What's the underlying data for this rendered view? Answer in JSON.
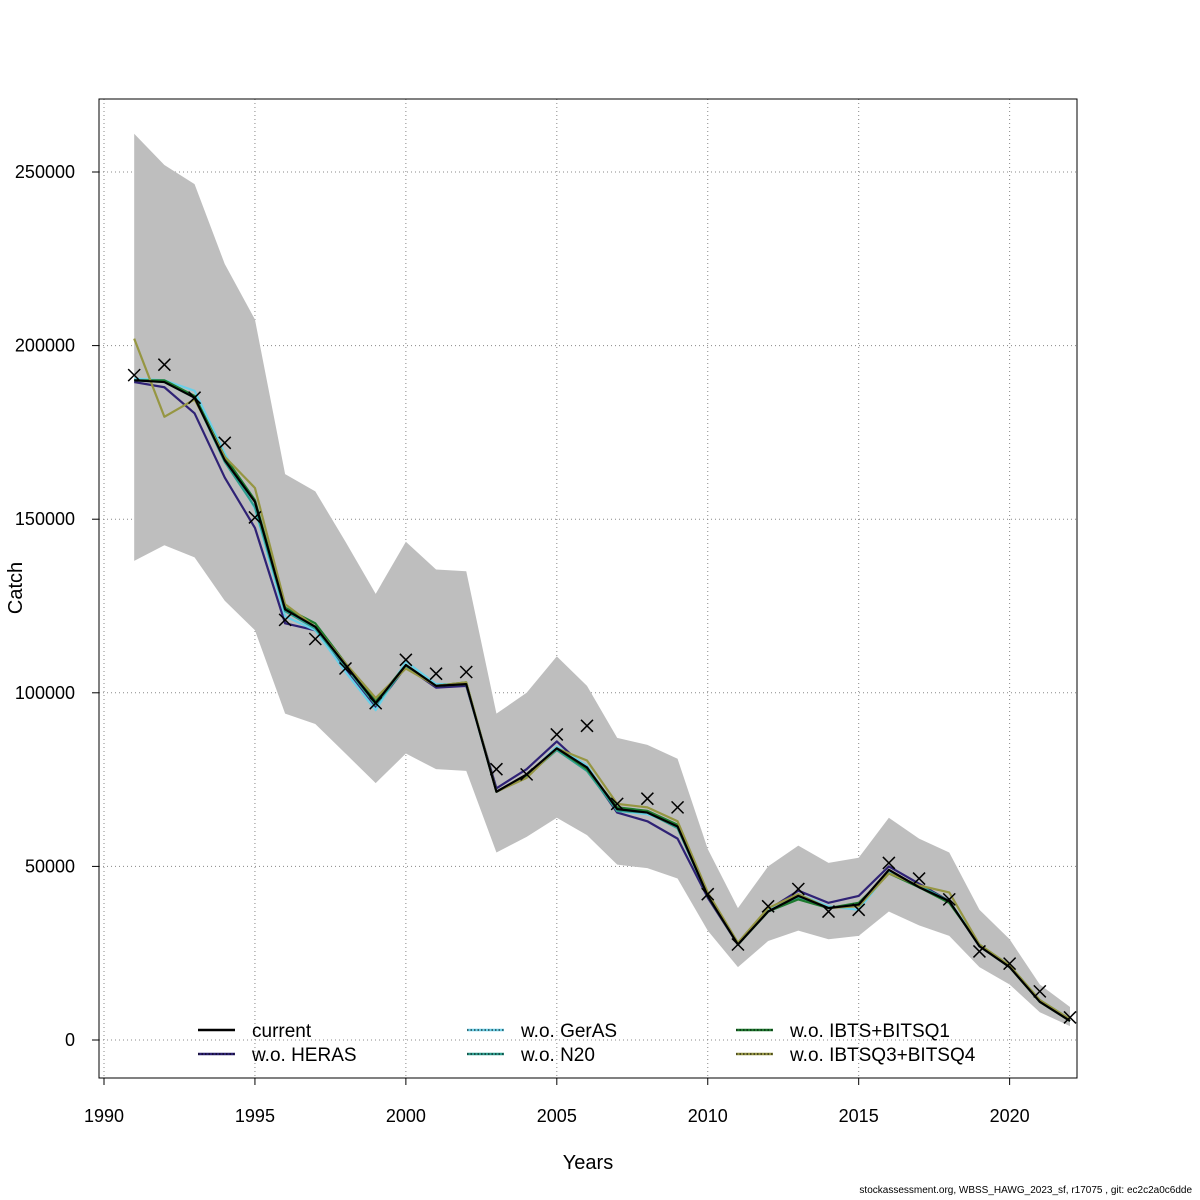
{
  "chart_data": {
    "type": "line",
    "xlabel": "Years",
    "ylabel": "Catch",
    "xlim": [
      1990,
      2023
    ],
    "ylim": [
      0,
      270000
    ],
    "x_ticks": [
      1990,
      1995,
      2000,
      2005,
      2010,
      2015,
      2020
    ],
    "y_ticks": [
      0,
      50000,
      100000,
      150000,
      200000,
      250000
    ],
    "grid": true,
    "legend_position": "bottom",
    "x": [
      1991,
      1992,
      1993,
      1994,
      1995,
      1996,
      1997,
      1998,
      1999,
      2000,
      2001,
      2002,
      2003,
      2004,
      2005,
      2006,
      2007,
      2008,
      2009,
      2010,
      2011,
      2012,
      2013,
      2014,
      2015,
      2016,
      2017,
      2018,
      2019,
      2020,
      2021,
      2022
    ],
    "confidence_band": {
      "color": "#bebebe",
      "lower": [
        138000,
        142500,
        139000,
        126500,
        118000,
        94000,
        91000,
        82500,
        74000,
        82500,
        78000,
        77500,
        54000,
        58500,
        64000,
        59000,
        50500,
        49500,
        46500,
        31500,
        21000,
        28500,
        31500,
        29000,
        30000,
        37000,
        33000,
        30000,
        21000,
        16000,
        8000,
        4000
      ],
      "upper": [
        261000,
        252000,
        246500,
        223500,
        207500,
        163000,
        158000,
        143500,
        128500,
        143500,
        135500,
        135000,
        94000,
        100000,
        110500,
        102000,
        87000,
        85000,
        81000,
        55000,
        38000,
        50000,
        56000,
        51000,
        52500,
        64000,
        58000,
        54000,
        37500,
        29000,
        16000,
        9500
      ]
    },
    "observed": {
      "marker": "x",
      "values": [
        191500,
        194500,
        185000,
        172000,
        150500,
        121000,
        115500,
        107000,
        97000,
        109500,
        105500,
        106000,
        78000,
        76500,
        88000,
        90500,
        68000,
        69500,
        67000,
        42000,
        27500,
        38500,
        43500,
        37000,
        37500,
        51000,
        46500,
        40500,
        25500,
        22000,
        14000,
        6500
      ]
    },
    "series": [
      {
        "name": "current",
        "color": "#000000",
        "dotted": false,
        "values": [
          190000,
          189500,
          185000,
          167000,
          155000,
          124000,
          119000,
          108000,
          97000,
          108000,
          102000,
          102500,
          71500,
          76500,
          84000,
          78500,
          66500,
          65500,
          61500,
          41500,
          27500,
          37000,
          41500,
          38000,
          39000,
          49000,
          44000,
          40000,
          27000,
          21000,
          11000,
          5500
        ]
      },
      {
        "name": "w.o. HERAS",
        "color": "#2f2275",
        "dotted": true,
        "values": [
          189500,
          188000,
          180500,
          162000,
          147500,
          120000,
          118000,
          107000,
          96000,
          107500,
          101500,
          102000,
          72500,
          78000,
          86000,
          78000,
          65500,
          63000,
          58000,
          41000,
          27500,
          37500,
          43000,
          39500,
          41500,
          50000,
          45000,
          40000,
          27000,
          21000,
          11500,
          5500
        ]
      },
      {
        "name": "w.o. GerAS",
        "color": "#6ad0e8",
        "dotted": true,
        "values": [
          190500,
          190000,
          187000,
          169000,
          153000,
          122000,
          118000,
          106000,
          95000,
          109000,
          102500,
          102500,
          71500,
          76000,
          84500,
          79000,
          66000,
          65000,
          62000,
          42000,
          28000,
          37500,
          42000,
          38500,
          37500,
          48500,
          44000,
          40000,
          27500,
          21500,
          11500,
          6000
        ]
      },
      {
        "name": "w.o. N20",
        "color": "#2e9f8f",
        "dotted": true,
        "values": [
          190000,
          189500,
          185000,
          166500,
          153500,
          123500,
          118500,
          107500,
          96500,
          107500,
          102000,
          102500,
          71500,
          76000,
          83500,
          77500,
          66000,
          65500,
          61000,
          41500,
          27500,
          37000,
          41000,
          38000,
          39000,
          48000,
          44500,
          40000,
          27000,
          21000,
          11000,
          5500
        ]
      },
      {
        "name": "w.o. IBTS+BITSQ1",
        "color": "#1e7b2f",
        "dotted": true,
        "values": [
          190000,
          190000,
          185500,
          168000,
          155500,
          124500,
          120000,
          108500,
          97500,
          108000,
          102000,
          103000,
          71500,
          76000,
          84000,
          78000,
          67000,
          66000,
          62000,
          42000,
          27500,
          37000,
          40500,
          38000,
          39500,
          48000,
          44000,
          39500,
          27500,
          21000,
          11000,
          5500
        ]
      },
      {
        "name": "w.o. IBTSQ3+BITSQ4",
        "color": "#969642",
        "dotted": true,
        "values": [
          202000,
          179500,
          184500,
          168000,
          159000,
          125500,
          119000,
          108500,
          98500,
          107000,
          102000,
          103000,
          71500,
          75500,
          84000,
          80500,
          68000,
          67000,
          63000,
          42500,
          28000,
          38000,
          42000,
          38000,
          38500,
          48000,
          44500,
          42500,
          27500,
          21500,
          11500,
          6000
        ]
      }
    ],
    "legend": {
      "col1": [
        "current",
        "w.o. HERAS"
      ],
      "col2": [
        "w.o. GerAS",
        "w.o. N20"
      ],
      "col3": [
        "w.o. IBTS+BITSQ1",
        "w.o. IBTSQ3+BITSQ4"
      ]
    }
  },
  "footer": "stockassessment.org, WBSS_HAWG_2023_sf, r17075 , git: ec2c2a0c6dde"
}
